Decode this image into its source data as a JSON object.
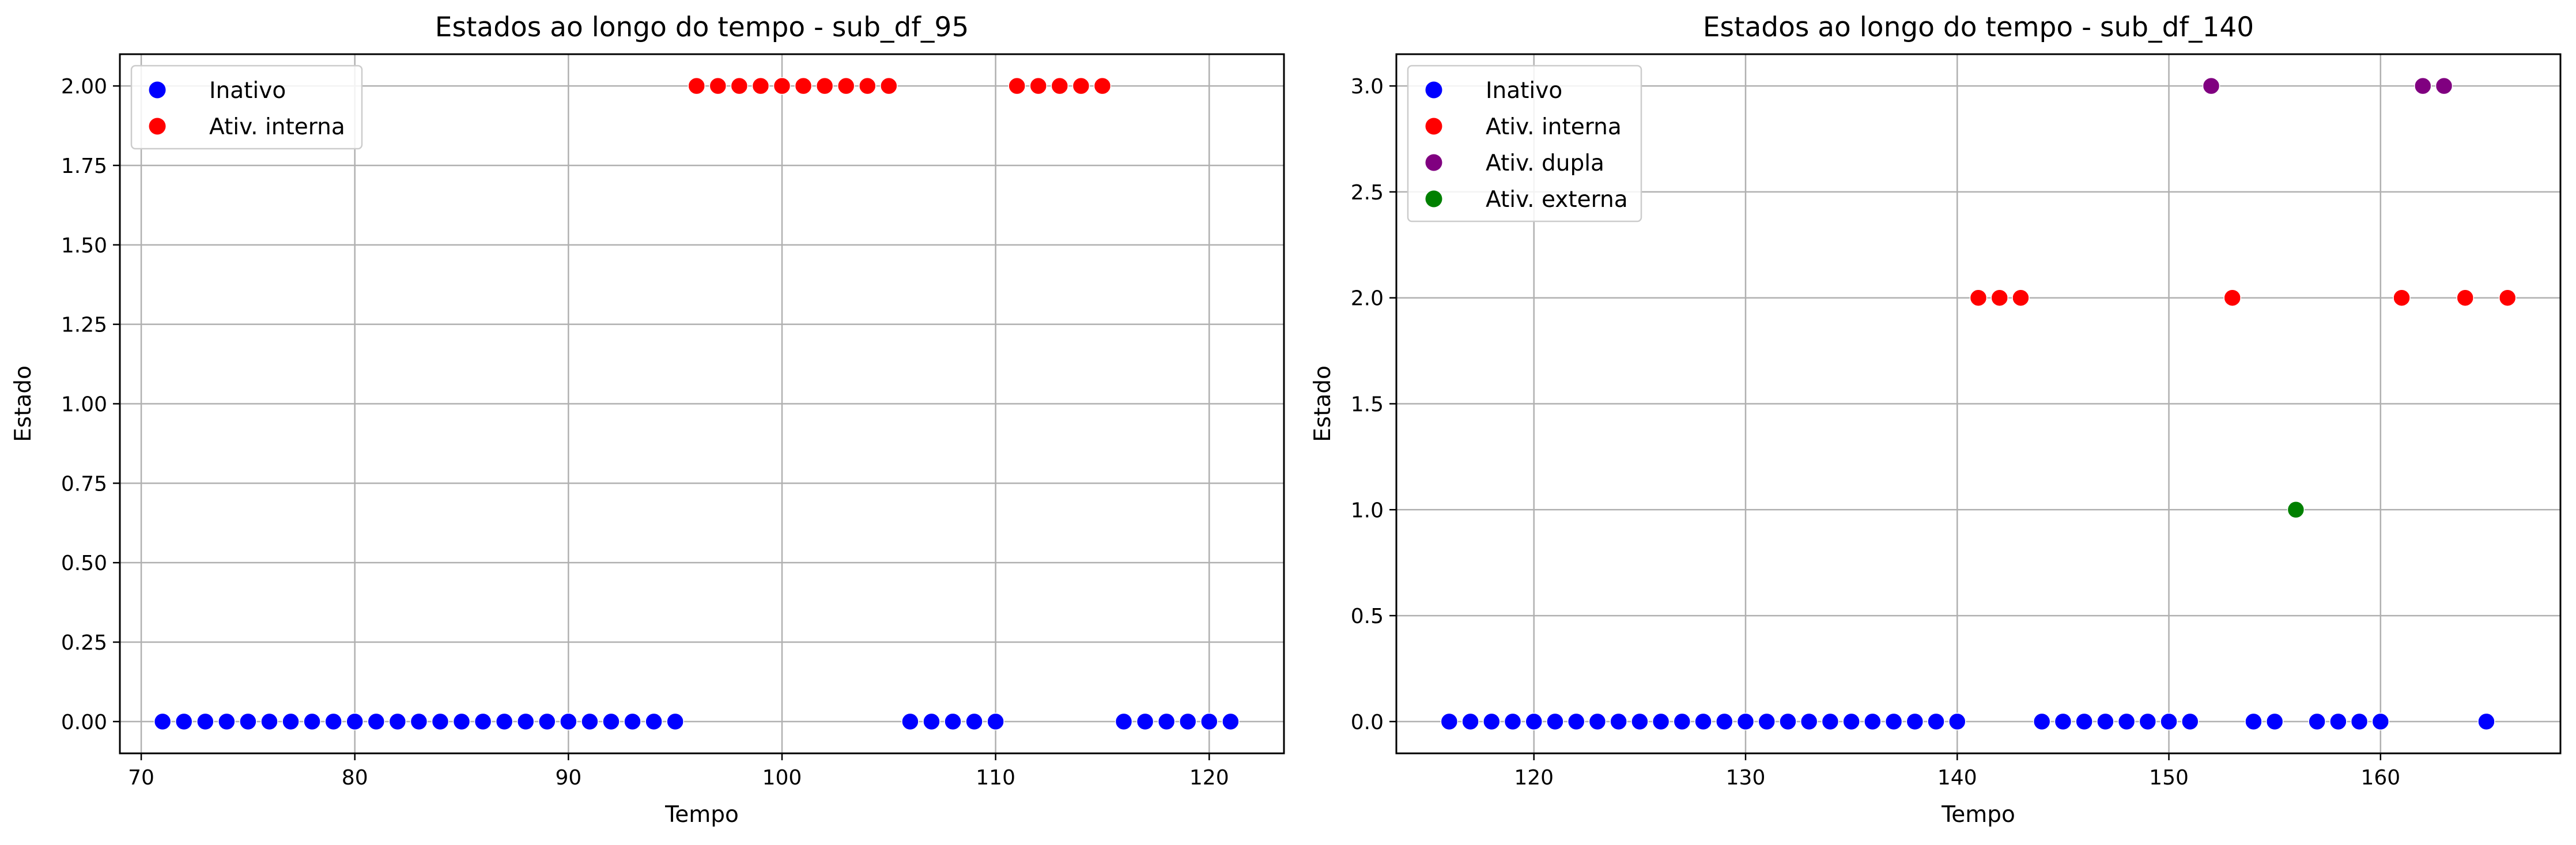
{
  "chart_data": [
    {
      "type": "scatter",
      "title": "Estados ao longo do tempo - sub_df_95",
      "xlabel": "Tempo",
      "ylabel": "Estado",
      "xlim": [
        69,
        123.5
      ],
      "ylim": [
        -0.1,
        2.1
      ],
      "xticks": [
        70,
        80,
        90,
        100,
        110,
        120
      ],
      "yticks": [
        0.0,
        0.25,
        0.5,
        0.75,
        1.0,
        1.25,
        1.5,
        1.75,
        2.0
      ],
      "ytick_labels": [
        "0.00",
        "0.25",
        "0.50",
        "0.75",
        "1.00",
        "1.25",
        "1.50",
        "1.75",
        "2.00"
      ],
      "grid": true,
      "legend_position": "upper-left",
      "series": [
        {
          "name": "Inativo",
          "color": "#0000ff",
          "x": [
            71,
            72,
            73,
            74,
            75,
            76,
            77,
            78,
            79,
            80,
            81,
            82,
            83,
            84,
            85,
            86,
            87,
            88,
            89,
            90,
            91,
            92,
            93,
            94,
            95,
            106,
            107,
            108,
            109,
            110,
            116,
            117,
            118,
            119,
            120,
            121
          ],
          "y": [
            0,
            0,
            0,
            0,
            0,
            0,
            0,
            0,
            0,
            0,
            0,
            0,
            0,
            0,
            0,
            0,
            0,
            0,
            0,
            0,
            0,
            0,
            0,
            0,
            0,
            0,
            0,
            0,
            0,
            0,
            0,
            0,
            0,
            0,
            0,
            0
          ]
        },
        {
          "name": "Ativ. interna",
          "color": "#ff0000",
          "x": [
            96,
            97,
            98,
            99,
            100,
            101,
            102,
            103,
            104,
            105,
            111,
            112,
            113,
            114,
            115
          ],
          "y": [
            2,
            2,
            2,
            2,
            2,
            2,
            2,
            2,
            2,
            2,
            2,
            2,
            2,
            2,
            2
          ]
        }
      ]
    },
    {
      "type": "scatter",
      "title": "Estados ao longo do tempo - sub_df_140",
      "xlabel": "Tempo",
      "ylabel": "Estado",
      "xlim": [
        113.5,
        168.5
      ],
      "ylim": [
        -0.15,
        3.15
      ],
      "xticks": [
        120,
        130,
        140,
        150,
        160
      ],
      "yticks": [
        0.0,
        0.5,
        1.0,
        1.5,
        2.0,
        2.5,
        3.0
      ],
      "ytick_labels": [
        "0.0",
        "0.5",
        "1.0",
        "1.5",
        "2.0",
        "2.5",
        "3.0"
      ],
      "grid": true,
      "legend_position": "upper-left",
      "series": [
        {
          "name": "Inativo",
          "color": "#0000ff",
          "x": [
            116,
            117,
            118,
            119,
            120,
            121,
            122,
            123,
            124,
            125,
            126,
            127,
            128,
            129,
            130,
            131,
            132,
            133,
            134,
            135,
            136,
            137,
            138,
            139,
            140,
            144,
            145,
            146,
            147,
            148,
            149,
            150,
            151,
            154,
            155,
            157,
            158,
            159,
            160,
            165
          ],
          "y": [
            0,
            0,
            0,
            0,
            0,
            0,
            0,
            0,
            0,
            0,
            0,
            0,
            0,
            0,
            0,
            0,
            0,
            0,
            0,
            0,
            0,
            0,
            0,
            0,
            0,
            0,
            0,
            0,
            0,
            0,
            0,
            0,
            0,
            0,
            0,
            0,
            0,
            0,
            0,
            0
          ]
        },
        {
          "name": "Ativ. interna",
          "color": "#ff0000",
          "x": [
            141,
            142,
            143,
            153,
            161,
            164,
            166
          ],
          "y": [
            2,
            2,
            2,
            2,
            2,
            2,
            2
          ]
        },
        {
          "name": "Ativ. dupla",
          "color": "#800080",
          "x": [
            152,
            162,
            163
          ],
          "y": [
            3,
            3,
            3
          ]
        },
        {
          "name": "Ativ. externa",
          "color": "#008000",
          "x": [
            156
          ],
          "y": [
            1
          ]
        }
      ]
    }
  ]
}
